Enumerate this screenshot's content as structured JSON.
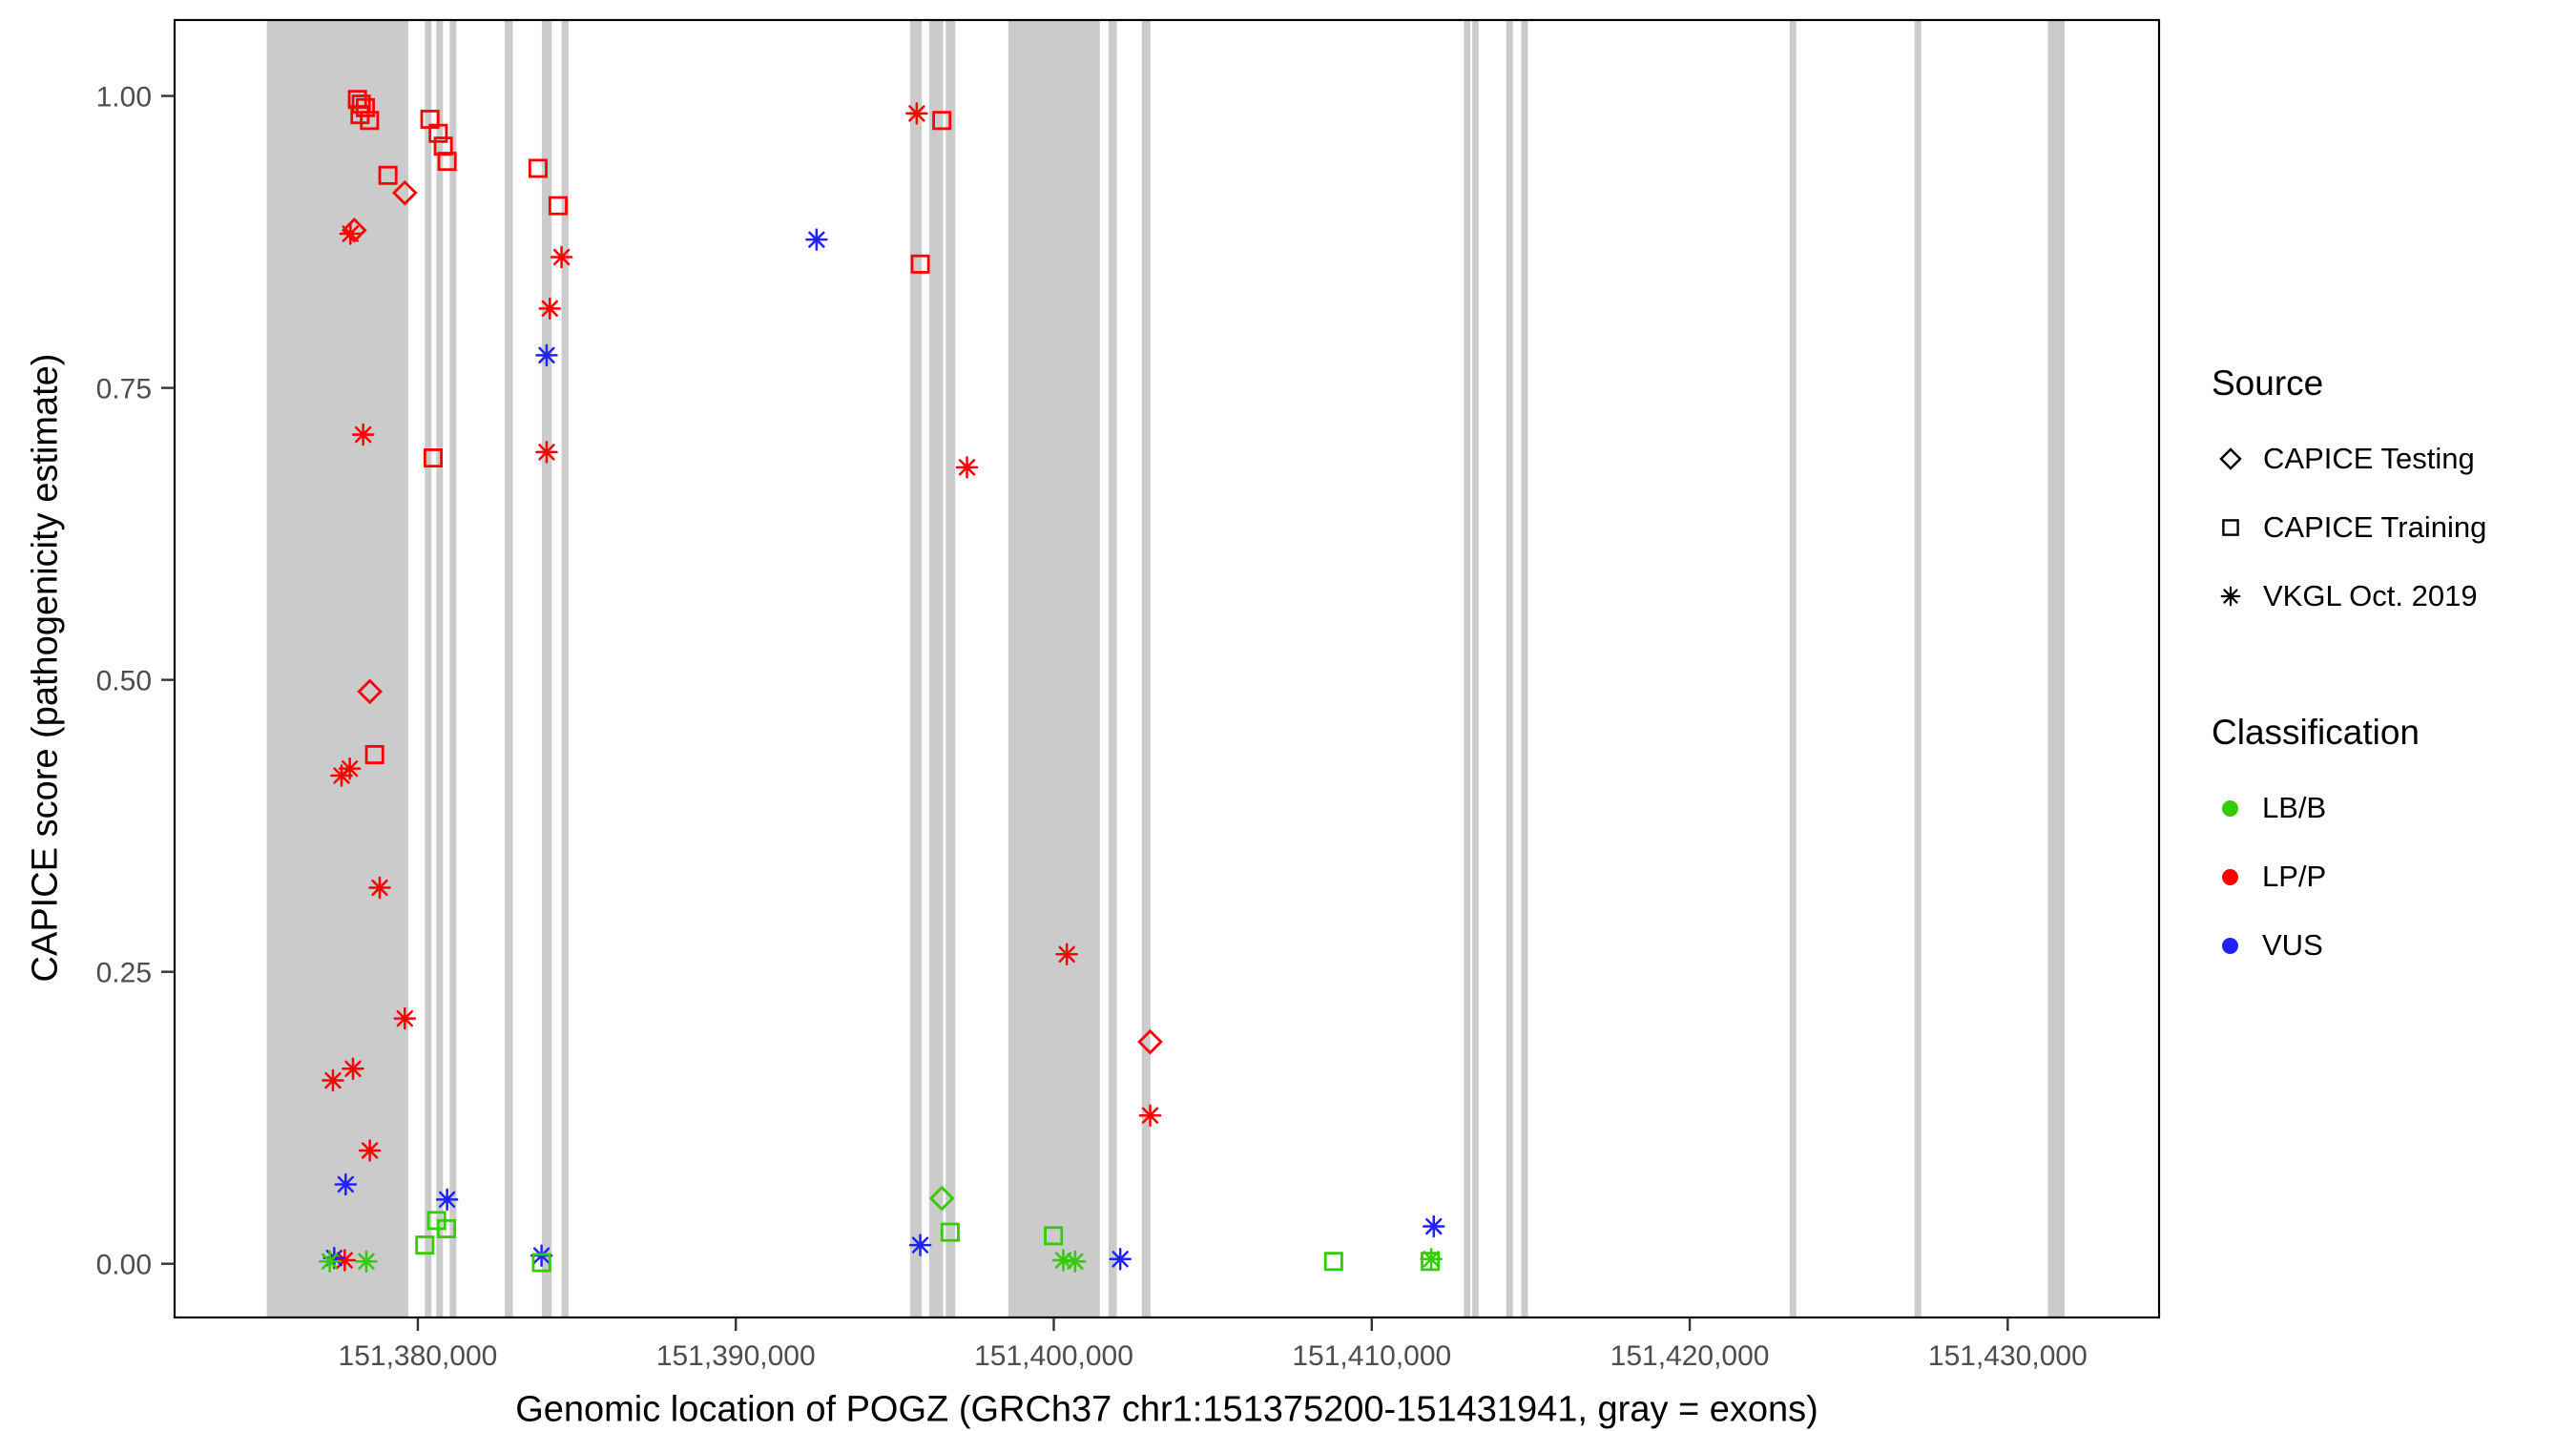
{
  "axes": {
    "x_label": "Genomic location of POGZ (GRCh37 chr1:151375200-151431941, gray = exons)",
    "y_label": "CAPICE score (pathogenicity estimate)",
    "x_tick_labels": [
      "151,380,000",
      "151,390,000",
      "151,400,000",
      "151,410,000",
      "151,420,000",
      "151,430,000"
    ],
    "y_tick_labels": [
      "0.00",
      "0.25",
      "0.50",
      "0.75",
      "1.00"
    ]
  },
  "legend": {
    "source_title": "Source",
    "source_items": [
      {
        "label": "CAPICE Testing",
        "marker": "diamond"
      },
      {
        "label": "CAPICE Training",
        "marker": "square"
      },
      {
        "label": "VKGL Oct. 2019",
        "marker": "asterisk"
      }
    ],
    "classification_title": "Classification",
    "classification_items": [
      {
        "label": "LB/B",
        "color": "#33CC00"
      },
      {
        "label": "LP/P",
        "color": "#FF0000"
      },
      {
        "label": "VUS",
        "color": "#2222FF"
      }
    ]
  },
  "chart_data": {
    "type": "scatter",
    "title": "",
    "xlabel": "Genomic location of POGZ (GRCh37 chr1:151375200-151431941, gray = exons)",
    "ylabel": "CAPICE score (pathogenicity estimate)",
    "xlim": [
      151372350,
      151434760
    ],
    "ylim": [
      -0.046,
      1.065
    ],
    "x_ticks": [
      151380000,
      151390000,
      151400000,
      151410000,
      151420000,
      151430000
    ],
    "x_tick_labels": [
      "151,380,000",
      "151,390,000",
      "151,400,000",
      "151,410,000",
      "151,420,000",
      "151,430,000"
    ],
    "y_ticks": [
      0.0,
      0.25,
      0.5,
      0.75,
      1.0
    ],
    "y_tick_labels": [
      "0.00",
      "0.25",
      "0.50",
      "0.75",
      "1.00"
    ],
    "grid": false,
    "legend_position": "right",
    "exon_color": "#CBCBCB",
    "class_colors": {
      "LB/B": "#33CC00",
      "LP/P": "#FF0000",
      "VUS": "#2222FF"
    },
    "source_marker_map": {
      "testing": "diamond",
      "training": "square",
      "vkgl": "asterisk"
    },
    "exons": [
      [
        151375250,
        151379700
      ],
      [
        151380220,
        151380430
      ],
      [
        151380580,
        151380790
      ],
      [
        151381000,
        151381210
      ],
      [
        151382730,
        151382990
      ],
      [
        151383900,
        151384210
      ],
      [
        151384520,
        151384740
      ],
      [
        151395480,
        151395850
      ],
      [
        151396080,
        151396520
      ],
      [
        151396600,
        151396900
      ],
      [
        151398570,
        151401450
      ],
      [
        151401720,
        151401980
      ],
      [
        151402770,
        151403040
      ],
      [
        151412900,
        151413100
      ],
      [
        151413160,
        151413360
      ],
      [
        151414230,
        151414440
      ],
      [
        151414700,
        151414910
      ],
      [
        151423140,
        151423350
      ],
      [
        151427070,
        151427280
      ],
      [
        151431260,
        151431790
      ]
    ],
    "points": [
      [
        151378100,
        0.997,
        "training",
        "LP/P"
      ],
      [
        151378220,
        0.993,
        "training",
        "LP/P"
      ],
      [
        151378350,
        0.99,
        "training",
        "LP/P"
      ],
      [
        151378180,
        0.984,
        "training",
        "LP/P"
      ],
      [
        151378480,
        0.979,
        "training",
        "LP/P"
      ],
      [
        151379060,
        0.932,
        "training",
        "LP/P"
      ],
      [
        151380380,
        0.98,
        "training",
        "LP/P"
      ],
      [
        151380640,
        0.968,
        "training",
        "LP/P"
      ],
      [
        151380800,
        0.957,
        "training",
        "LP/P"
      ],
      [
        151380920,
        0.944,
        "training",
        "LP/P"
      ],
      [
        151383780,
        0.938,
        "training",
        "LP/P"
      ],
      [
        151384410,
        0.906,
        "training",
        "LP/P"
      ],
      [
        151380480,
        0.69,
        "training",
        "LP/P"
      ],
      [
        151378640,
        0.436,
        "training",
        "LP/P"
      ],
      [
        151395800,
        0.856,
        "training",
        "LP/P"
      ],
      [
        151396480,
        0.979,
        "training",
        "LP/P"
      ],
      [
        151379590,
        0.917,
        "testing",
        "LP/P"
      ],
      [
        151378000,
        0.885,
        "testing",
        "LP/P"
      ],
      [
        151378490,
        0.49,
        "testing",
        "LP/P"
      ],
      [
        151403030,
        0.19,
        "testing",
        "LP/P"
      ],
      [
        151377880,
        0.882,
        "vkgl",
        "LP/P"
      ],
      [
        151378280,
        0.71,
        "vkgl",
        "LP/P"
      ],
      [
        151384050,
        0.695,
        "vkgl",
        "LP/P"
      ],
      [
        151384520,
        0.862,
        "vkgl",
        "LP/P"
      ],
      [
        151384150,
        0.818,
        "vkgl",
        "LP/P"
      ],
      [
        151395690,
        0.985,
        "vkgl",
        "LP/P"
      ],
      [
        151397270,
        0.682,
        "vkgl",
        "LP/P"
      ],
      [
        151377600,
        0.418,
        "vkgl",
        "LP/P"
      ],
      [
        151377860,
        0.424,
        "vkgl",
        "LP/P"
      ],
      [
        151378800,
        0.322,
        "vkgl",
        "LP/P"
      ],
      [
        151379590,
        0.21,
        "vkgl",
        "LP/P"
      ],
      [
        151377330,
        0.157,
        "vkgl",
        "LP/P"
      ],
      [
        151377960,
        0.167,
        "vkgl",
        "LP/P"
      ],
      [
        151378490,
        0.097,
        "vkgl",
        "LP/P"
      ],
      [
        151400410,
        0.265,
        "vkgl",
        "LP/P"
      ],
      [
        151403030,
        0.127,
        "vkgl",
        "LP/P"
      ],
      [
        151377700,
        0.003,
        "vkgl",
        "LP/P"
      ],
      [
        151384050,
        0.778,
        "vkgl",
        "VUS"
      ],
      [
        151392540,
        0.877,
        "vkgl",
        "VUS"
      ],
      [
        151377730,
        0.068,
        "vkgl",
        "VUS"
      ],
      [
        151380920,
        0.055,
        "vkgl",
        "VUS"
      ],
      [
        151377370,
        0.005,
        "vkgl",
        "VUS"
      ],
      [
        151383890,
        0.007,
        "vkgl",
        "VUS"
      ],
      [
        151395800,
        0.016,
        "vkgl",
        "VUS"
      ],
      [
        151402090,
        0.004,
        "vkgl",
        "VUS"
      ],
      [
        151411950,
        0.032,
        "vkgl",
        "VUS"
      ],
      [
        151396480,
        0.056,
        "testing",
        "LB/B"
      ],
      [
        151380590,
        0.037,
        "training",
        "LB/B"
      ],
      [
        151380900,
        0.03,
        "training",
        "LB/B"
      ],
      [
        151380220,
        0.016,
        "training",
        "LB/B"
      ],
      [
        151383890,
        0.001,
        "training",
        "LB/B"
      ],
      [
        151396740,
        0.027,
        "training",
        "LB/B"
      ],
      [
        151399990,
        0.024,
        "training",
        "LB/B"
      ],
      [
        151408800,
        0.002,
        "training",
        "LB/B"
      ],
      [
        151411840,
        0.002,
        "training",
        "LB/B"
      ],
      [
        151377230,
        0.002,
        "vkgl",
        "LB/B"
      ],
      [
        151378380,
        0.002,
        "vkgl",
        "LB/B"
      ],
      [
        151400300,
        0.003,
        "vkgl",
        "LB/B"
      ],
      [
        151400670,
        0.002,
        "vkgl",
        "LB/B"
      ],
      [
        151411870,
        0.004,
        "vkgl",
        "LB/B"
      ]
    ]
  }
}
